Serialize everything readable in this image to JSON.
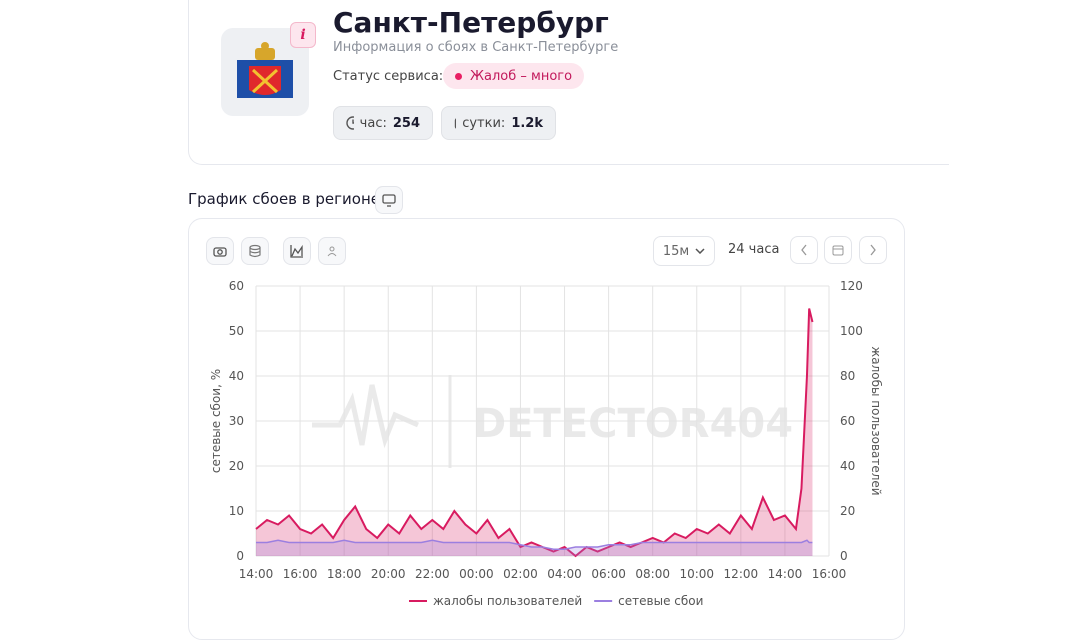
{
  "header": {
    "title": "Санкт-Петербург",
    "subtitle": "Информация о сбоях в Санкт-Петербурге",
    "status_label": "Статус сервиса:",
    "status_value": "Жалоб – много",
    "stats": [
      {
        "label": "час:",
        "value": "254"
      },
      {
        "label": "сутки:",
        "value": "1.2k"
      }
    ]
  },
  "section_title": "График сбоев в регионе",
  "controls": {
    "interval": "15м",
    "range": "24 часа"
  },
  "watermark": "DETECTOR404",
  "chart_data": {
    "type": "line",
    "y_label": "сетевые сбои, %",
    "y2_label": "жалобы пользователей",
    "x": [
      14,
      14.5,
      15,
      15.5,
      16,
      16.5,
      17,
      17.5,
      18,
      18.5,
      19,
      19.5,
      20,
      20.5,
      21,
      21.5,
      22,
      22.5,
      23,
      23.5,
      24,
      24.5,
      25,
      25.5,
      26,
      26.5,
      27,
      27.5,
      28,
      28.5,
      29,
      29.5,
      30,
      30.5,
      31,
      31.5,
      32,
      32.5,
      33,
      33.5,
      34,
      34.5,
      35,
      35.5,
      36,
      36.5,
      37,
      37.5,
      38,
      38.5,
      38.75,
      39,
      39.1,
      39.25
    ],
    "series": [
      {
        "name": "жалобы пользователей",
        "color": "#d81b60",
        "axis": "y2",
        "values": [
          12,
          16,
          14,
          18,
          12,
          10,
          14,
          8,
          16,
          22,
          12,
          8,
          14,
          10,
          18,
          12,
          16,
          12,
          20,
          14,
          10,
          16,
          8,
          12,
          4,
          6,
          4,
          2,
          4,
          0,
          4,
          2,
          4,
          6,
          4,
          6,
          8,
          6,
          10,
          8,
          12,
          10,
          14,
          10,
          18,
          12,
          26,
          16,
          18,
          12,
          30,
          80,
          110,
          104
        ]
      },
      {
        "name": "сетевые сбои",
        "color": "#9b7fe0",
        "values": [
          3,
          3,
          3.5,
          3,
          3,
          3,
          3,
          3,
          3.5,
          3,
          3,
          3,
          3,
          3,
          3,
          3,
          3.5,
          3,
          3,
          3,
          3,
          3,
          3,
          3,
          2.5,
          2,
          2,
          1.5,
          1.5,
          2,
          2,
          2,
          2.5,
          2.5,
          2.5,
          3,
          3,
          3,
          3,
          3,
          3,
          3,
          3,
          3,
          3,
          3,
          3,
          3,
          3,
          3,
          3,
          3.5,
          3,
          3
        ]
      }
    ],
    "xlim": [
      14,
      40
    ],
    "xticks": [
      {
        "value": 14,
        "label": "14:00"
      },
      {
        "value": 16,
        "label": "16:00"
      },
      {
        "value": 18,
        "label": "18:00"
      },
      {
        "value": 20,
        "label": "20:00"
      },
      {
        "value": 22,
        "label": "22:00"
      },
      {
        "value": 24,
        "label": "00:00"
      },
      {
        "value": 26,
        "label": "02:00"
      },
      {
        "value": 28,
        "label": "04:00"
      },
      {
        "value": 30,
        "label": "06:00"
      },
      {
        "value": 32,
        "label": "08:00"
      },
      {
        "value": 34,
        "label": "10:00"
      },
      {
        "value": 36,
        "label": "12:00"
      },
      {
        "value": 38,
        "label": "14:00"
      },
      {
        "value": 40,
        "label": "16:00"
      }
    ],
    "ylim": [
      0,
      60
    ],
    "yticks": [
      0,
      10,
      20,
      30,
      40,
      50,
      60
    ],
    "y2lim": [
      0,
      120
    ],
    "y2ticks": [
      0,
      20,
      40,
      60,
      80,
      100,
      120
    ],
    "grid": true,
    "legend": "bottom"
  }
}
